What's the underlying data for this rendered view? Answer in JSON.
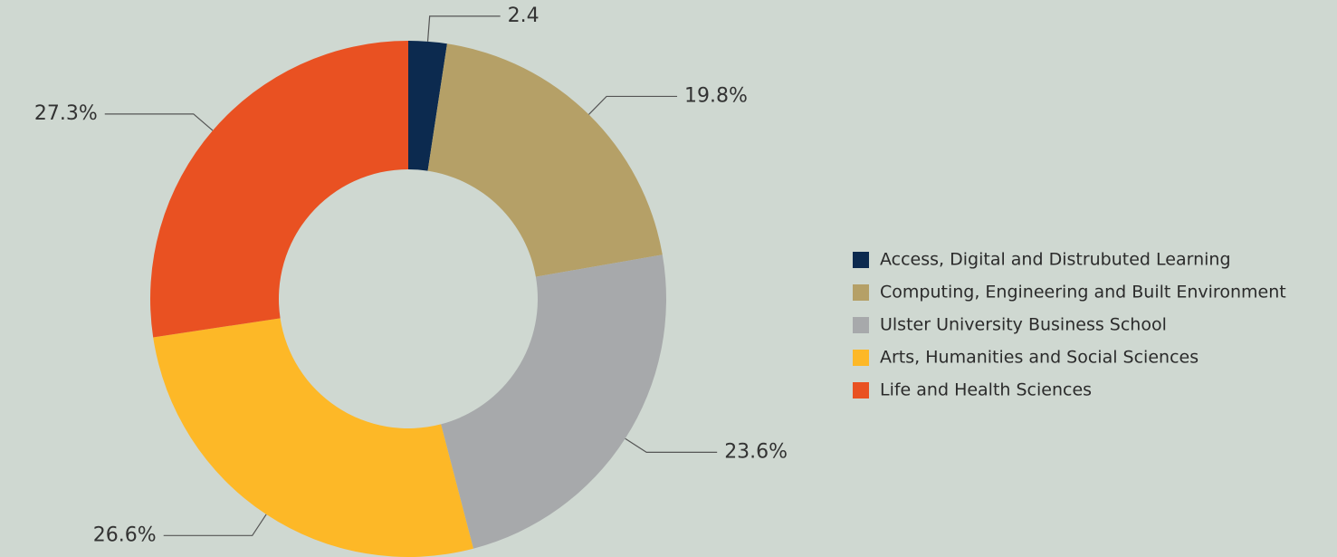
{
  "chart_data": {
    "type": "donut",
    "categories": [
      "Access, Digital and Distrubuted Learning",
      "Computing, Engineering and Built Environment",
      "Ulster University Business School",
      "Arts, Humanities and Social Sciences",
      "Life and Health Sciences"
    ],
    "values": [
      2.4,
      19.8,
      23.6,
      26.6,
      27.3
    ],
    "value_labels": [
      "2.4",
      "19.8%",
      "23.6%",
      "26.6%",
      "27.3%"
    ],
    "colors": [
      "#0c2a4f",
      "#b5a067",
      "#a7a9ab",
      "#fdb827",
      "#e95122"
    ]
  }
}
